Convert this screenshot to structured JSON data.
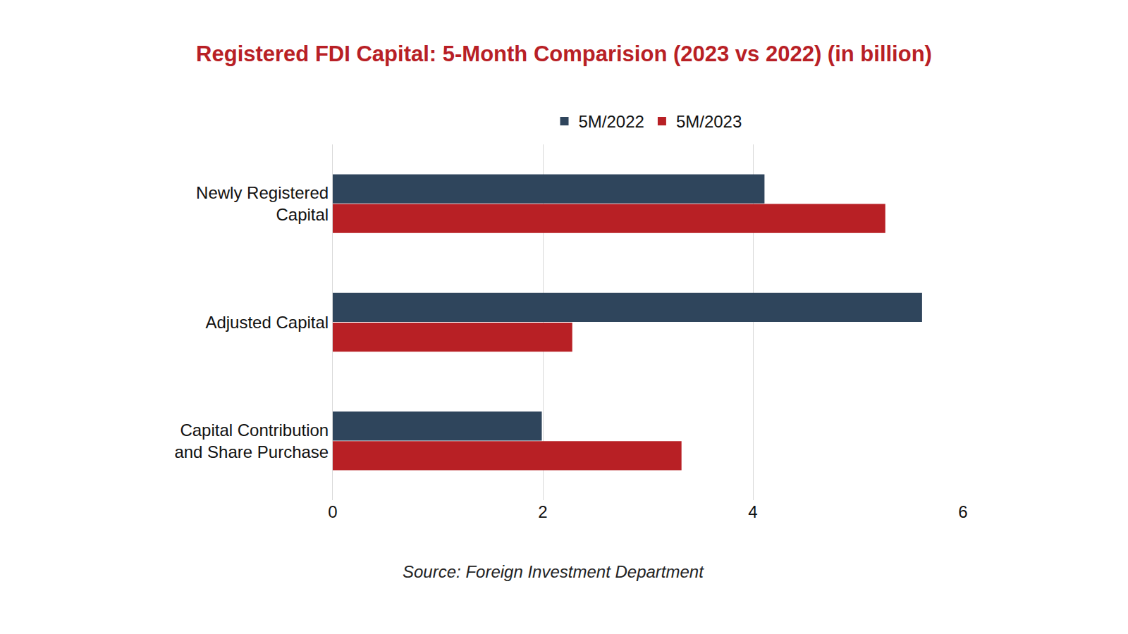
{
  "chart_data": {
    "type": "bar",
    "orientation": "horizontal",
    "title": "Registered FDI Capital: 5-Month Comparision (2023 vs 2022) (in billion)",
    "categories": [
      "Newly Registered Capital",
      "Adjusted Capital",
      "Capital Contribution and Share Purchase"
    ],
    "series": [
      {
        "name": "5M/2022",
        "color": "#2f455c",
        "values": [
          4.11,
          5.61,
          1.99
        ]
      },
      {
        "name": "5M/2023",
        "color": "#b82025",
        "values": [
          5.26,
          2.28,
          3.32
        ]
      }
    ],
    "xlim": [
      0,
      6
    ],
    "xticks": [
      0,
      2,
      4,
      6
    ],
    "grid": true,
    "legend": "top",
    "annotations": [
      "Source: Foreign Investment Department"
    ]
  }
}
